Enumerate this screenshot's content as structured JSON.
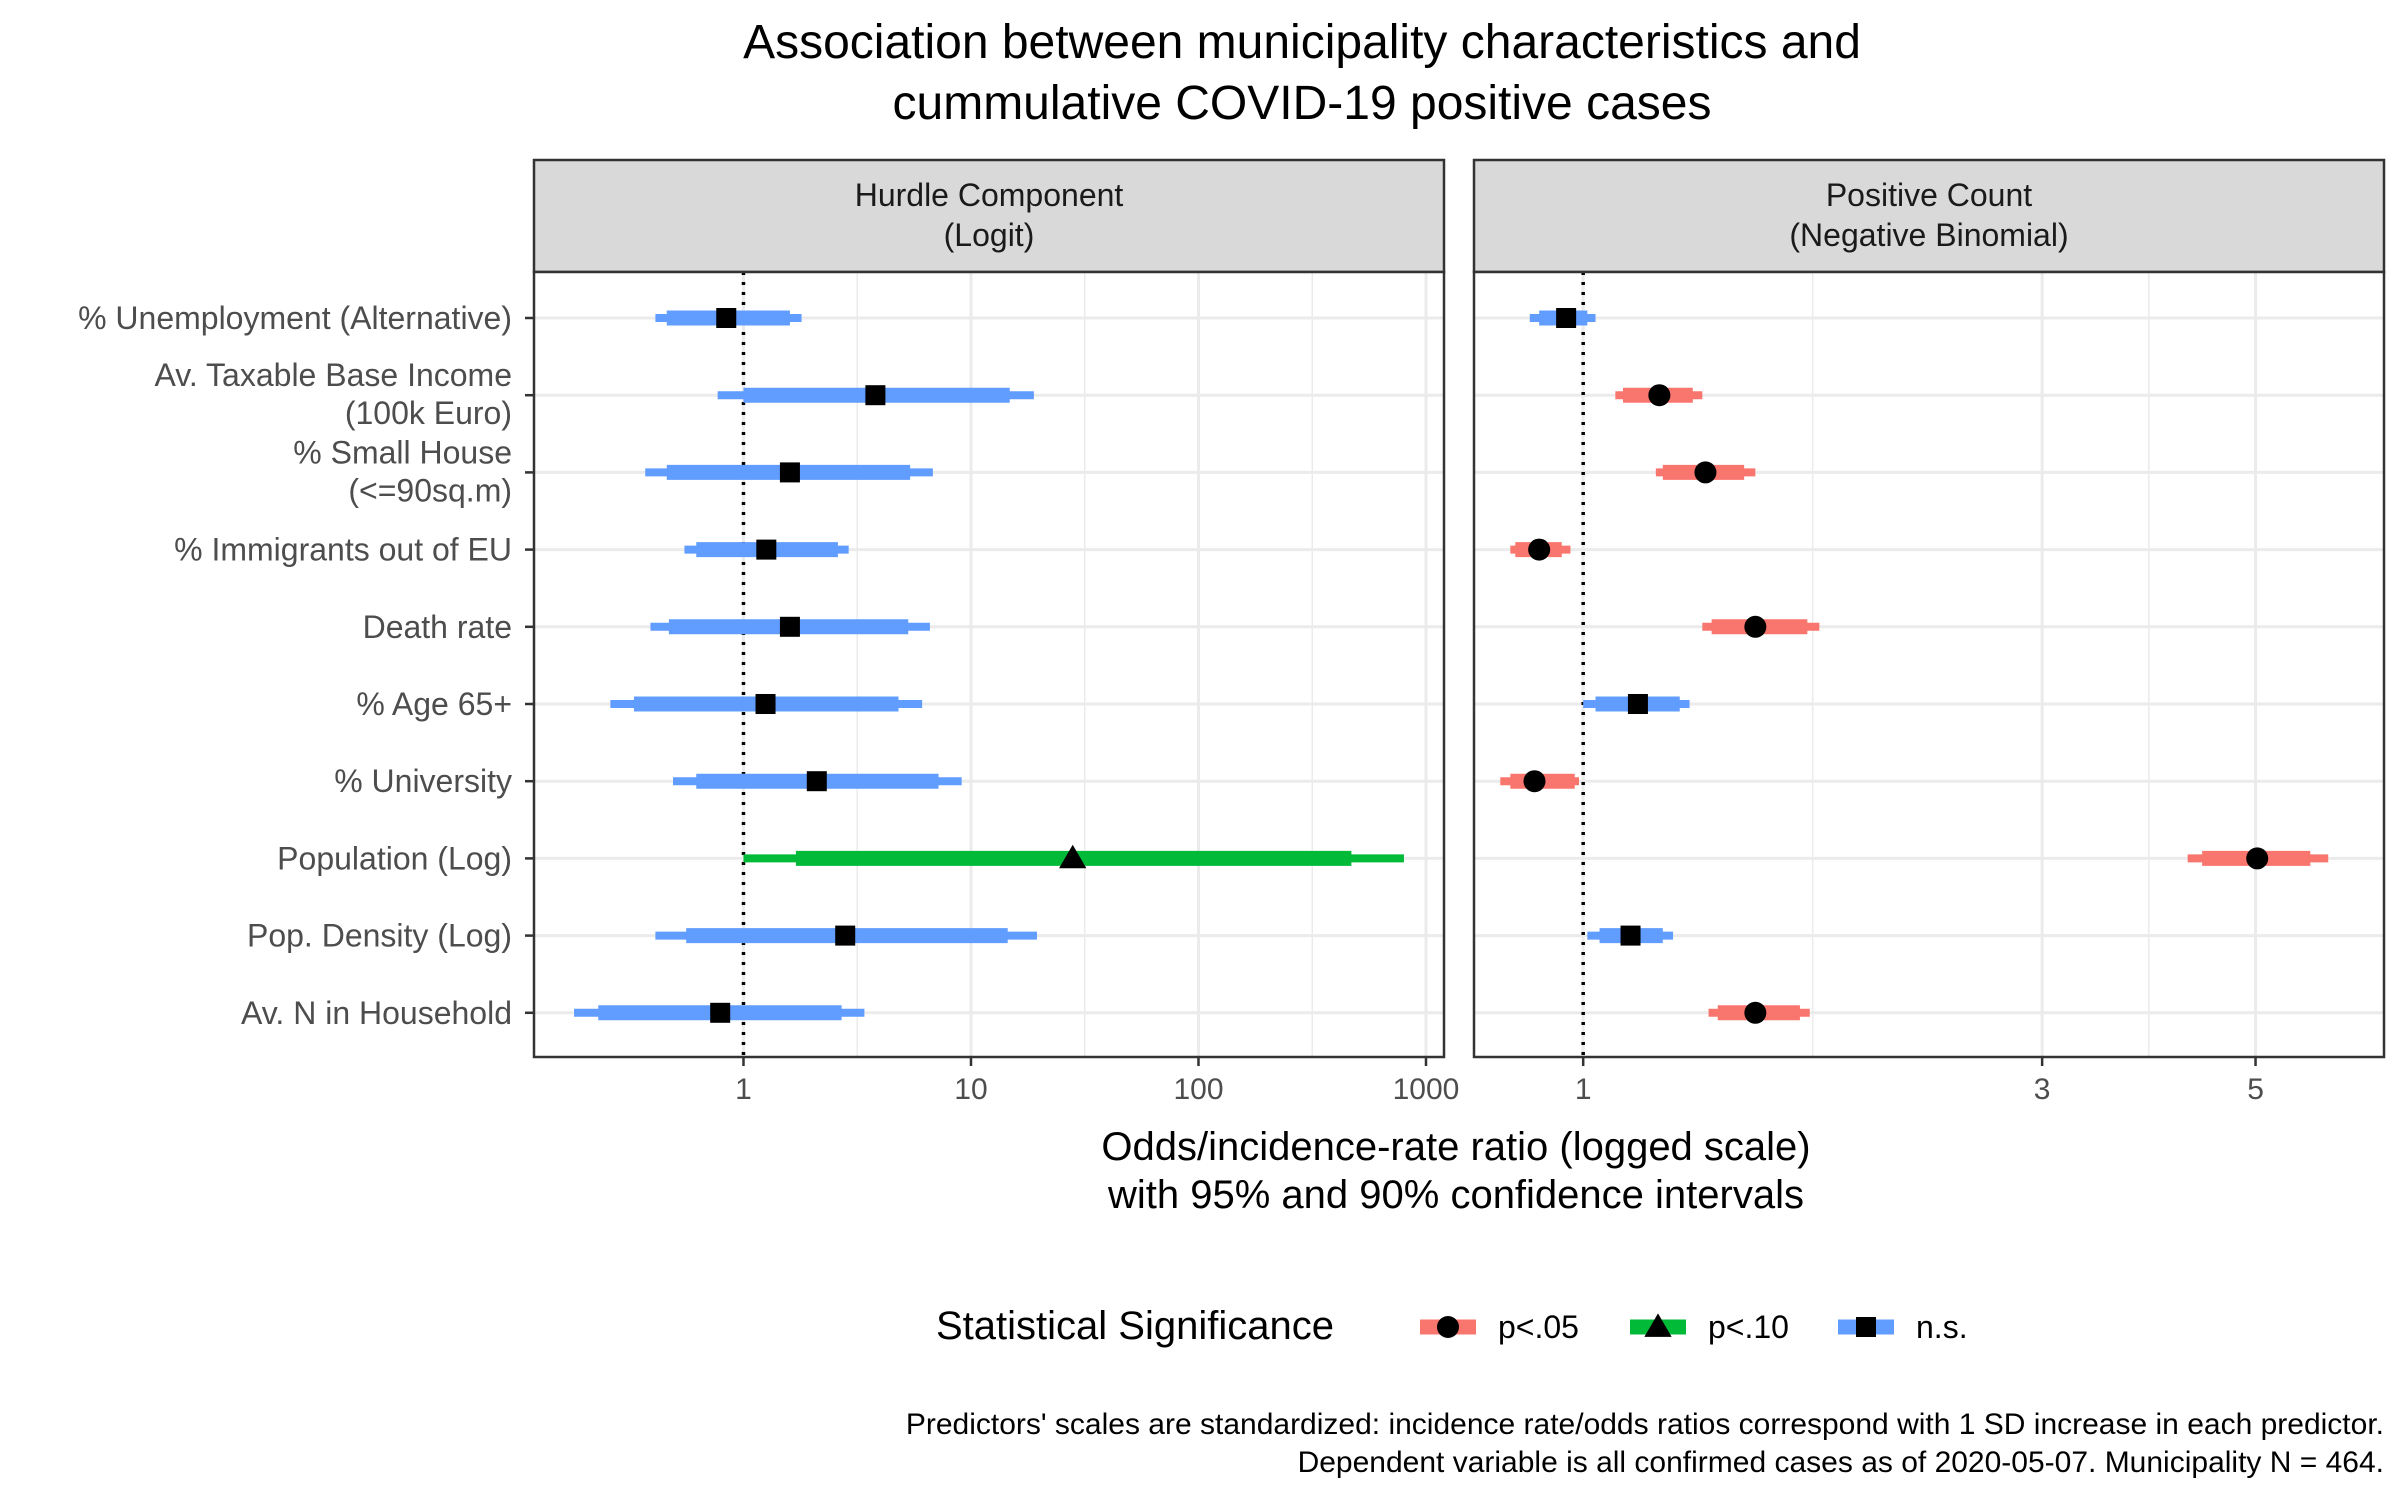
{
  "chart_data": {
    "type": "scatter",
    "title": [
      "Association between municipality characteristics and",
      "cummulative COVID-19 positive cases"
    ],
    "xlabel": [
      "Odds/incidence-rate ratio (logged scale)",
      "with 95% and 90% confidence intervals"
    ],
    "x_scale": "log",
    "predictors": [
      [
        "% Unemployment (Alternative)"
      ],
      [
        "Av. Taxable Base Income",
        "(100k Euro)"
      ],
      [
        "% Small House",
        "(<=90sq.m)"
      ],
      [
        "% Immigrants out of EU"
      ],
      [
        "Death rate"
      ],
      [
        "% Age 65+"
      ],
      [
        "% University"
      ],
      [
        "Population (Log)"
      ],
      [
        "Pop. Density (Log)"
      ],
      [
        "Av. N in Household"
      ]
    ],
    "panels": [
      {
        "strip": [
          "Hurdle Component",
          "(Logit)"
        ],
        "xlim": [
          0.12,
          1200
        ],
        "ticks": [
          1,
          10,
          100,
          1000
        ],
        "tick_labels": [
          "1",
          "10",
          "100",
          "1000"
        ],
        "ref_line": 1,
        "estimates": [
          {
            "est": 0.84,
            "lo90": 0.46,
            "hi90": 1.6,
            "lo95": 0.41,
            "hi95": 1.8,
            "sig": "ns"
          },
          {
            "est": 3.8,
            "lo90": 1.0,
            "hi90": 14.8,
            "lo95": 0.77,
            "hi95": 18.9,
            "sig": "ns"
          },
          {
            "est": 1.6,
            "lo90": 0.46,
            "hi90": 5.4,
            "lo95": 0.37,
            "hi95": 6.8,
            "sig": "ns"
          },
          {
            "est": 1.26,
            "lo90": 0.62,
            "hi90": 2.6,
            "lo95": 0.55,
            "hi95": 2.9,
            "sig": "ns"
          },
          {
            "est": 1.6,
            "lo90": 0.47,
            "hi90": 5.3,
            "lo95": 0.39,
            "hi95": 6.6,
            "sig": "ns"
          },
          {
            "est": 1.25,
            "lo90": 0.33,
            "hi90": 4.8,
            "lo95": 0.26,
            "hi95": 6.1,
            "sig": "ns"
          },
          {
            "est": 2.1,
            "lo90": 0.62,
            "hi90": 7.2,
            "lo95": 0.49,
            "hi95": 9.1,
            "sig": "ns"
          },
          {
            "est": 28,
            "lo90": 1.7,
            "hi90": 470,
            "lo95": 1.0,
            "hi95": 800,
            "sig": "p10"
          },
          {
            "est": 2.8,
            "lo90": 0.56,
            "hi90": 14.5,
            "lo95": 0.41,
            "hi95": 19.5,
            "sig": "ns"
          },
          {
            "est": 0.79,
            "lo90": 0.23,
            "hi90": 2.7,
            "lo95": 0.18,
            "hi95": 3.4,
            "sig": "ns"
          }
        ]
      },
      {
        "strip": [
          "Positive Count",
          "(Negative Binomial)"
        ],
        "xlim": [
          0.77,
          6.8
        ],
        "ticks": [
          1,
          3,
          5
        ],
        "tick_labels": [
          "1",
          "3",
          "5"
        ],
        "ref_line": 1,
        "estimates": [
          {
            "est": 0.96,
            "lo90": 0.9,
            "hi90": 1.01,
            "lo95": 0.88,
            "hi95": 1.03,
            "sig": "ns"
          },
          {
            "est": 1.2,
            "lo90": 1.1,
            "hi90": 1.3,
            "lo95": 1.08,
            "hi95": 1.33,
            "sig": "p05"
          },
          {
            "est": 1.34,
            "lo90": 1.21,
            "hi90": 1.47,
            "lo95": 1.19,
            "hi95": 1.51,
            "sig": "p05"
          },
          {
            "est": 0.9,
            "lo90": 0.85,
            "hi90": 0.95,
            "lo95": 0.84,
            "hi95": 0.97,
            "sig": "p05"
          },
          {
            "est": 1.51,
            "lo90": 1.36,
            "hi90": 1.71,
            "lo95": 1.33,
            "hi95": 1.76,
            "sig": "p05"
          },
          {
            "est": 1.14,
            "lo90": 1.03,
            "hi90": 1.26,
            "lo95": 1.0,
            "hi95": 1.29,
            "sig": "ns"
          },
          {
            "est": 0.89,
            "lo90": 0.84,
            "hi90": 0.98,
            "lo95": 0.82,
            "hi95": 0.99,
            "sig": "p05"
          },
          {
            "est": 5.02,
            "lo90": 4.4,
            "hi90": 5.7,
            "lo95": 4.25,
            "hi95": 5.95,
            "sig": "p05"
          },
          {
            "est": 1.12,
            "lo90": 1.04,
            "hi90": 1.21,
            "lo95": 1.01,
            "hi95": 1.24,
            "sig": "ns"
          },
          {
            "est": 1.51,
            "lo90": 1.38,
            "hi90": 1.68,
            "lo95": 1.35,
            "hi95": 1.72,
            "sig": "p05"
          }
        ]
      }
    ],
    "legend": {
      "title": "Statistical Significance",
      "position": "bottom",
      "items": [
        {
          "key": "p05",
          "label": "p<.05",
          "color": "#F8766D",
          "shape": "circle"
        },
        {
          "key": "p10",
          "label": "p<.10",
          "color": "#00BA38",
          "shape": "triangle"
        },
        {
          "key": "ns",
          "label": "n.s.",
          "color": "#619CFF",
          "shape": "square"
        }
      ]
    },
    "caption": [
      "Predictors' scales are standardized: incidence rate/odds ratios correspond with 1 SD increase in each predictor.",
      "Dependent variable is all confirmed cases as of 2020-05-07. Municipality N = 464."
    ],
    "grid": true
  }
}
